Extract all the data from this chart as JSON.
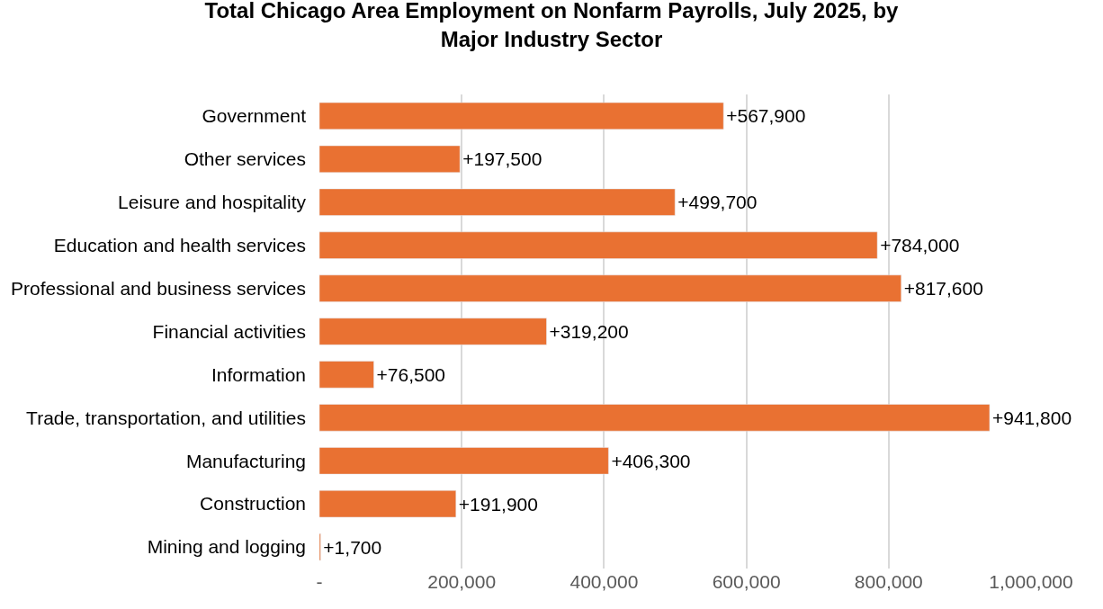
{
  "chart_data": {
    "type": "bar",
    "orientation": "horizontal",
    "title": "Total Chicago Area Employment on Nonfarm Payrolls, July 2025, by Major Industry Sector",
    "categories": [
      "Government",
      "Other services",
      "Leisure and hospitality",
      "Education and health services",
      "Professional and business services",
      "Financial activities",
      "Information",
      "Trade, transportation, and utilities",
      "Manufacturing",
      "Construction",
      "Mining and logging"
    ],
    "values": [
      567900,
      197500,
      499700,
      784000,
      817600,
      319200,
      76500,
      941800,
      406300,
      191900,
      1700
    ],
    "value_labels": [
      "+567,900",
      "+197,500",
      "+499,700",
      "+784,000",
      "+817,600",
      "+319,200",
      "+76,500",
      "+941,800",
      "+406,300",
      "+191,900",
      "+1,700"
    ],
    "color": "#e97132",
    "xlim": [
      0,
      1000000
    ],
    "xticks": [
      {
        "value": 0,
        "label": "-"
      },
      {
        "value": 200000,
        "label": "200,000"
      },
      {
        "value": 400000,
        "label": "400,000"
      },
      {
        "value": 600000,
        "label": "600,000"
      },
      {
        "value": 800000,
        "label": "800,000"
      },
      {
        "value": 1000000,
        "label": "1,000,000"
      }
    ],
    "grid": "x",
    "legend": false
  }
}
